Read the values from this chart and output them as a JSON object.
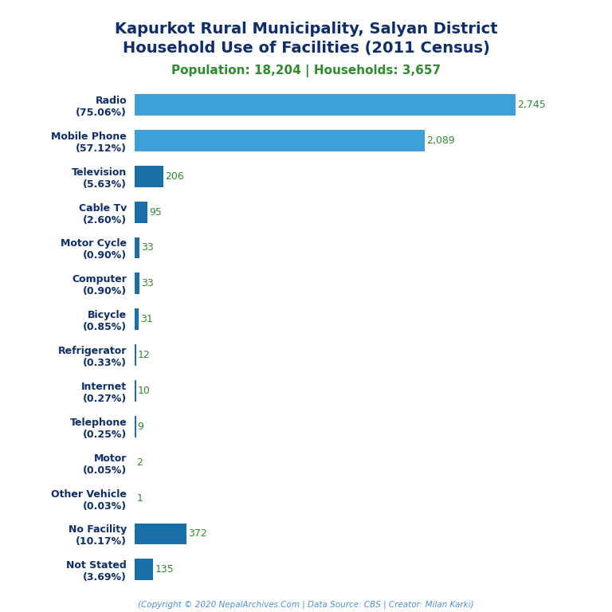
{
  "title_line1": "Kapurkot Rural Municipality, Salyan District",
  "title_line2": "Household Use of Facilities (2011 Census)",
  "subtitle": "Population: 18,204 | Households: 3,657",
  "title_color": "#0d2d6b",
  "subtitle_color": "#2e8b2e",
  "footer": "(Copyright © 2020 NepalArchives.Com | Data Source: CBS | Creator: Milan Karki)",
  "footer_color": "#4a90d9",
  "categories": [
    "Radio\n(75.06%)",
    "Mobile Phone\n(57.12%)",
    "Television\n(5.63%)",
    "Cable Tv\n(2.60%)",
    "Motor Cycle\n(0.90%)",
    "Computer\n(0.90%)",
    "Bicycle\n(0.85%)",
    "Refrigerator\n(0.33%)",
    "Internet\n(0.27%)",
    "Telephone\n(0.25%)",
    "Motor\n(0.05%)",
    "Other Vehicle\n(0.03%)",
    "No Facility\n(10.17%)",
    "Not Stated\n(3.69%)"
  ],
  "values": [
    2745,
    2089,
    206,
    95,
    33,
    33,
    31,
    12,
    10,
    9,
    2,
    1,
    372,
    135
  ],
  "bar_color_small": "#1a6fa8",
  "bar_color_large": "#3da0d8",
  "value_color": "#2e8b2e",
  "background_color": "#ffffff",
  "xlim": [
    0,
    3000
  ],
  "label_fontsize": 9,
  "value_fontsize": 9,
  "title_fontsize": 14,
  "subtitle_fontsize": 11,
  "footer_fontsize": 7.5
}
